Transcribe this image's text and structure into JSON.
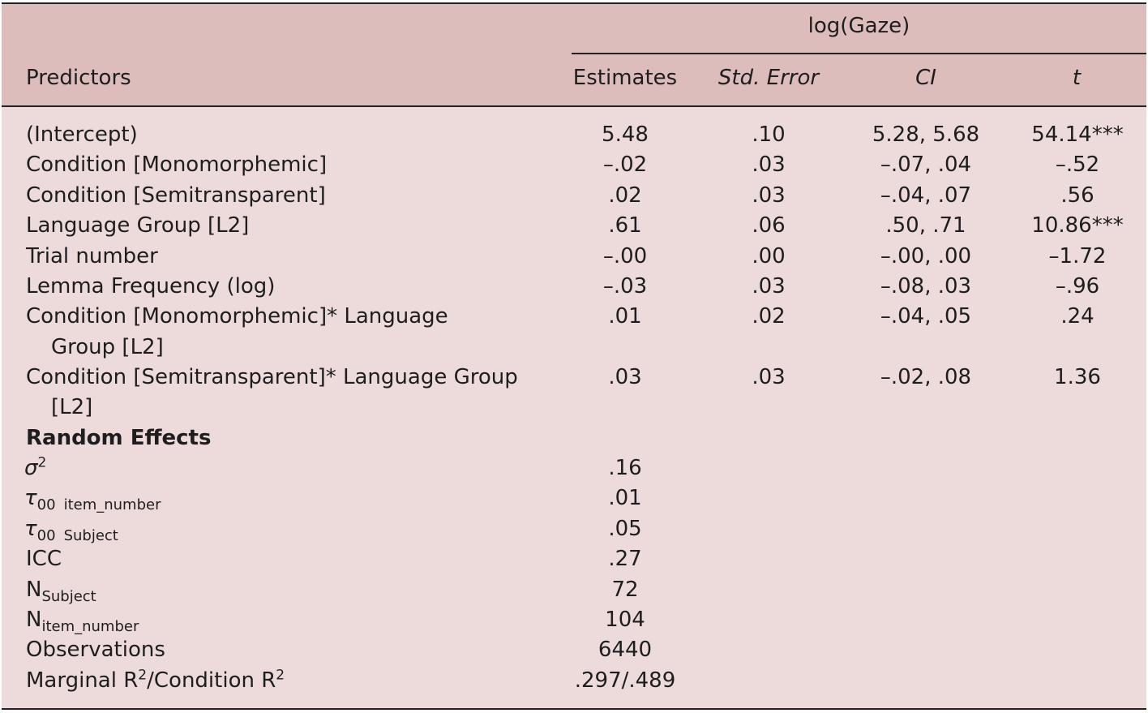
{
  "header": {
    "group_title": "log(Gaze)",
    "predictors": "Predictors",
    "estimates": "Estimates",
    "std_error": "Std. Error",
    "ci": "CI",
    "t": "t"
  },
  "rows": [
    {
      "label": "(Intercept)",
      "label2": "",
      "est": "5.48",
      "se": ".10",
      "ci": "5.28, 5.68",
      "t": "54.14***"
    },
    {
      "label": "Condition [Monomorphemic]",
      "label2": "",
      "est": "–.02",
      "se": ".03",
      "ci": "–.07, .04",
      "t": "–.52"
    },
    {
      "label": "Condition [Semitransparent]",
      "label2": "",
      "est": ".02",
      "se": ".03",
      "ci": "–.04, .07",
      "t": ".56"
    },
    {
      "label": "Language Group [L2]",
      "label2": "",
      "est": ".61",
      "se": ".06",
      "ci": ".50, .71",
      "t": "10.86***"
    },
    {
      "label": "Trial number",
      "label2": "",
      "est": "–.00",
      "se": ".00",
      "ci": "–.00, .00",
      "t": "–1.72"
    },
    {
      "label": "Lemma Frequency (log)",
      "label2": "",
      "est": "–.03",
      "se": ".03",
      "ci": "–.08, .03",
      "t": "–.96"
    },
    {
      "label": "Condition [Monomorphemic]* Language",
      "label2": "Group [L2]",
      "est": ".01",
      "se": ".02",
      "ci": "–.04, .05",
      "t": ".24"
    },
    {
      "label": "Condition [Semitransparent]* Language Group",
      "label2": "[L2]",
      "est": ".03",
      "se": ".03",
      "ci": "–.02, .08",
      "t": "1.36"
    }
  ],
  "random_effects": {
    "title": "Random Effects",
    "sigma_sym": "σ",
    "sigma_sup": "2",
    "sigma_val": ".16",
    "tau_sym": "τ",
    "tau_sub": "00",
    "tau_item_label": "item_number",
    "tau_item_val": ".01",
    "tau_subject_label": "Subject",
    "tau_subject_val": ".05",
    "icc_label": "ICC",
    "icc_val": ".27",
    "n_sym": "N",
    "n_subject_sub": "Subject",
    "n_subject_val": "72",
    "n_item_sub": "item_number",
    "n_item_val": "104",
    "obs_label": "Observations",
    "obs_val": "6440",
    "r2_marginal": "Marginal R",
    "r2_sup": "2",
    "r2_sep": "/Condition R",
    "r2_val": ".297/.489"
  }
}
